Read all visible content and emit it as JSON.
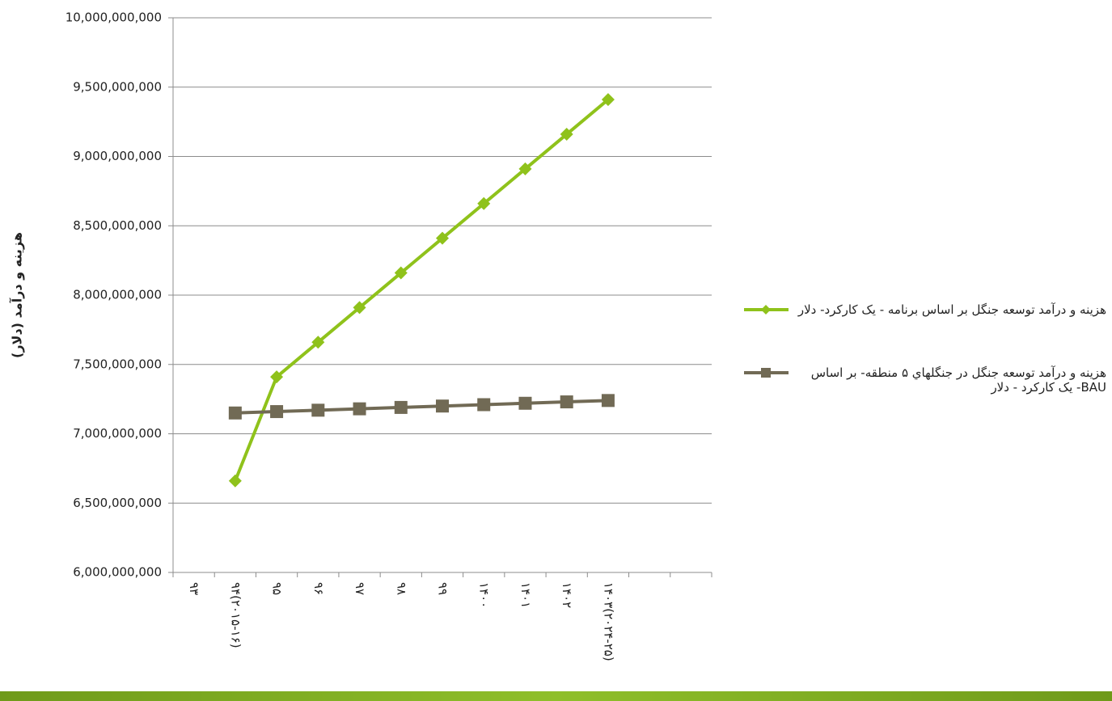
{
  "chart_data": {
    "type": "line",
    "y_label": "هزینه و درآمد (دلار)",
    "categories": [
      "۹۳",
      "۹۴(۲۰۱۵-۱۶)",
      "۹۵",
      "۹۶",
      "۹۷",
      "۹۸",
      "۹۹",
      "۱۴۰۰",
      "۱۴۰۱",
      "۱۴۰۲",
      "۱۴۰۳(۲۰۲۴-۲۵)",
      null,
      null
    ],
    "series": [
      {
        "name": "هزینه و درآمد توسعه جنگل بر اساس برنامه - یک کارکرد- دلار",
        "color": "#8fc21b",
        "marker": "diamond",
        "values": [
          null,
          6660000000,
          7410000000,
          7660000000,
          7910000000,
          8160000000,
          8410000000,
          8660000000,
          8910000000,
          9160000000,
          9410000000,
          null,
          null
        ]
      },
      {
        "name": "هزینه و درآمد توسعه جنگل در جنگلهاي ۵ منطقه- بر اساس BAU- یک کارکرد - دلار",
        "color": "#716a55",
        "marker": "square",
        "values": [
          null,
          7150000000,
          7160000000,
          7170000000,
          7180000000,
          7190000000,
          7200000000,
          7210000000,
          7220000000,
          7230000000,
          7240000000,
          null,
          null
        ]
      }
    ],
    "ylim": [
      6000000000,
      10000000000
    ],
    "yticks": [
      {
        "value": 6000000000,
        "label": "6,000,000,000"
      },
      {
        "value": 6500000000,
        "label": "6,500,000,000"
      },
      {
        "value": 7000000000,
        "label": "7,000,000,000"
      },
      {
        "value": 7500000000,
        "label": "7,500,000,000"
      },
      {
        "value": 8000000000,
        "label": "8,000,000,000"
      },
      {
        "value": 8500000000,
        "label": "8,500,000,000"
      },
      {
        "value": 9000000000,
        "label": "9,000,000,000"
      },
      {
        "value": 9500000000,
        "label": "9,500,000,000"
      },
      {
        "value": 10000000000,
        "label": "10,000,000,000"
      }
    ],
    "grid": true,
    "legend": "right"
  }
}
